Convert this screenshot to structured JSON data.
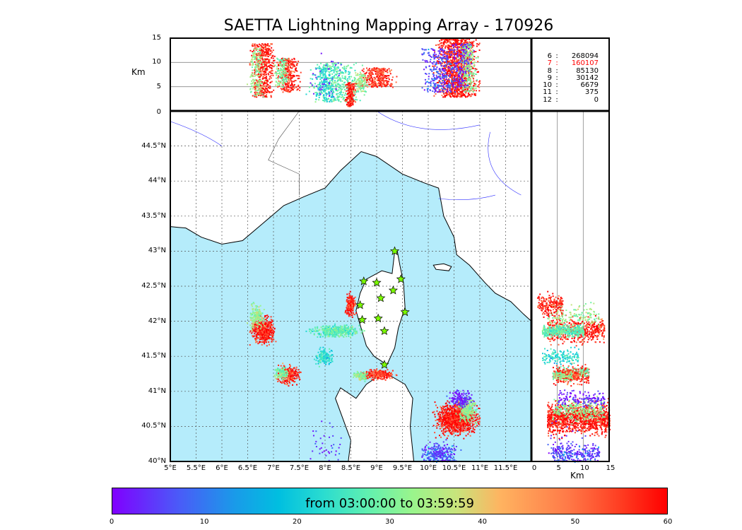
{
  "chart_data": {
    "type": "scatter",
    "title": "SAETTA Lightning Mapping Array - 170926",
    "map": {
      "xlabel_ticks": [
        "5°E",
        "5.5°E",
        "6°E",
        "6.5°E",
        "7°E",
        "7.5°E",
        "8°E",
        "8.5°E",
        "9°E",
        "9.5°E",
        "10°E",
        "10.5°E",
        "11°E",
        "11.5°E"
      ],
      "lon_ticks": [
        5,
        5.5,
        6,
        6.5,
        7,
        7.5,
        8,
        8.5,
        9,
        9.5,
        10,
        10.5,
        11,
        11.5
      ],
      "ylabel_ticks": [
        "40°N",
        "40.5°N",
        "41°N",
        "41.5°N",
        "42°N",
        "42.5°N",
        "43°N",
        "43.5°N",
        "44°N",
        "44.5°N"
      ],
      "lat_ticks": [
        40,
        40.5,
        41,
        41.5,
        42,
        42.5,
        43,
        43.5,
        44,
        44.5
      ],
      "lon_range": [
        5,
        12
      ],
      "lat_range": [
        40,
        45
      ]
    },
    "top_panel": {
      "ylabel": "Km",
      "ticks": [
        "0",
        "5",
        "10",
        "15"
      ],
      "alt_range": [
        0,
        15
      ]
    },
    "right_panel": {
      "xlabel": "Km",
      "ticks": [
        "0",
        "5",
        "10",
        "15"
      ],
      "alt_range": [
        0,
        15
      ]
    },
    "stats": [
      {
        "k": "6",
        "v": "268094",
        "highlight": false
      },
      {
        "k": "7",
        "v": "160107",
        "highlight": true
      },
      {
        "k": "8",
        "v": "85130",
        "highlight": false
      },
      {
        "k": "9",
        "v": "30142",
        "highlight": false
      },
      {
        "k": "10",
        "v": "6679",
        "highlight": false
      },
      {
        "k": "11",
        "v": "375",
        "highlight": false
      },
      {
        "k": "12",
        "v": "0",
        "highlight": false
      }
    ],
    "stations": [
      [
        9.35,
        43.0
      ],
      [
        8.75,
        42.57
      ],
      [
        9.0,
        42.55
      ],
      [
        9.47,
        42.6
      ],
      [
        9.32,
        42.44
      ],
      [
        9.08,
        42.33
      ],
      [
        8.68,
        42.23
      ],
      [
        9.55,
        42.13
      ],
      [
        8.72,
        42.02
      ],
      [
        9.03,
        42.04
      ],
      [
        9.15,
        41.86
      ],
      [
        9.15,
        41.38
      ]
    ],
    "clusters": [
      {
        "lon": 6.78,
        "lat": 41.88,
        "sx": 0.1,
        "sy": 0.08,
        "t": 58,
        "n": 500,
        "alt": [
          3,
          14
        ]
      },
      {
        "lon": 6.66,
        "lat": 42.08,
        "sx": 0.07,
        "sy": 0.08,
        "t": 36,
        "n": 150,
        "alt": [
          3,
          13
        ]
      },
      {
        "lon": 7.28,
        "lat": 41.25,
        "sx": 0.1,
        "sy": 0.06,
        "t": 57,
        "n": 300,
        "alt": [
          4,
          11
        ]
      },
      {
        "lon": 7.15,
        "lat": 41.27,
        "sx": 0.06,
        "sy": 0.04,
        "t": 33,
        "n": 120,
        "alt": [
          5,
          11
        ]
      },
      {
        "lon": 8.2,
        "lat": 41.87,
        "sx": 0.22,
        "sy": 0.04,
        "t": 30,
        "n": 400,
        "alt": [
          2,
          10
        ]
      },
      {
        "lon": 7.97,
        "lat": 41.5,
        "sx": 0.07,
        "sy": 0.05,
        "t": 24,
        "n": 150,
        "alt": [
          2,
          9
        ]
      },
      {
        "lon": 8.48,
        "lat": 42.25,
        "sx": 0.04,
        "sy": 0.07,
        "t": 58,
        "n": 200,
        "alt": [
          1,
          6
        ]
      },
      {
        "lon": 9.0,
        "lat": 41.25,
        "sx": 0.14,
        "sy": 0.03,
        "t": 57,
        "n": 300,
        "alt": [
          5,
          9
        ]
      },
      {
        "lon": 8.68,
        "lat": 41.23,
        "sx": 0.07,
        "sy": 0.03,
        "t": 36,
        "n": 100,
        "alt": [
          4,
          8
        ]
      },
      {
        "lon": 10.55,
        "lat": 40.62,
        "sx": 0.18,
        "sy": 0.1,
        "t": 59,
        "n": 1200,
        "alt": [
          3,
          15
        ]
      },
      {
        "lon": 10.75,
        "lat": 40.75,
        "sx": 0.08,
        "sy": 0.08,
        "t": 35,
        "n": 250,
        "alt": [
          4,
          14
        ]
      },
      {
        "lon": 10.6,
        "lat": 40.9,
        "sx": 0.1,
        "sy": 0.05,
        "t": 4,
        "n": 150,
        "alt": [
          5,
          14
        ]
      },
      {
        "lon": 10.2,
        "lat": 40.1,
        "sx": 0.15,
        "sy": 0.08,
        "t": 8,
        "n": 300,
        "alt": [
          4,
          13
        ]
      },
      {
        "lon": 8.0,
        "lat": 40.2,
        "sx": 0.15,
        "sy": 0.15,
        "t": 6,
        "n": 40,
        "alt": [
          3,
          12
        ]
      }
    ],
    "colorbar": {
      "label": "from 03:00:00 to 03:59:59",
      "ticks": [
        "0",
        "10",
        "20",
        "30",
        "40",
        "50",
        "60"
      ],
      "range": [
        0,
        60
      ]
    }
  }
}
